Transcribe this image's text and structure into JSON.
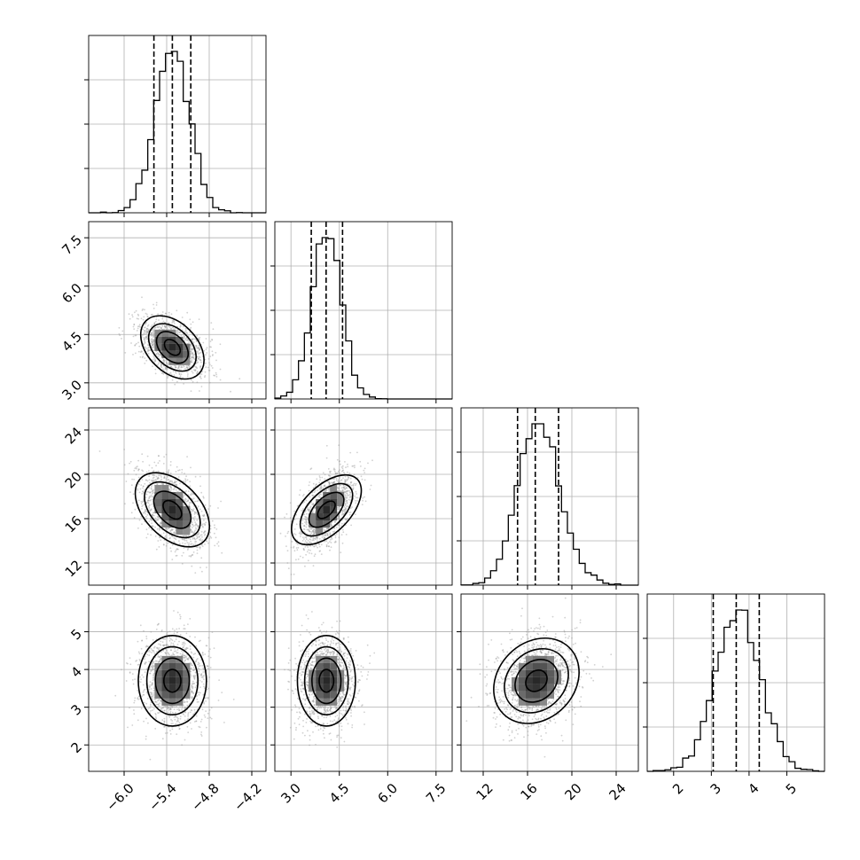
{
  "chart_data": {
    "type": "corner",
    "variables": [
      {
        "range": [
          -6.5,
          -4.0
        ],
        "ticks": [
          -6.0,
          -5.4,
          -4.8,
          -4.2
        ],
        "tick_labels": [
          "−6.0",
          "−5.4",
          "−4.8",
          "−4.2"
        ],
        "quantiles": [
          -5.58,
          -5.32,
          -5.06
        ],
        "mean": -5.32,
        "sd": 0.24
      },
      {
        "range": [
          2.5,
          8.0
        ],
        "ticks": [
          3.0,
          4.5,
          6.0,
          7.5
        ],
        "tick_labels": [
          "3.0",
          "4.5",
          "6.0",
          "7.5"
        ],
        "quantiles": [
          3.63,
          4.09,
          4.6
        ],
        "mean": 4.1,
        "sd": 0.45
      },
      {
        "range": [
          10.0,
          26.0
        ],
        "ticks": [
          12,
          16,
          20,
          24
        ],
        "tick_labels": [
          "12",
          "16",
          "20",
          "24"
        ],
        "quantiles": [
          15.1,
          16.7,
          18.8
        ],
        "mean": 16.8,
        "sd": 1.8
      },
      {
        "range": [
          1.3,
          6.0
        ],
        "ticks": [
          2,
          3,
          4,
          5
        ],
        "tick_labels": [
          "2",
          "3",
          "4",
          "5"
        ],
        "quantiles": [
          3.05,
          3.66,
          4.27
        ],
        "mean": 3.7,
        "sd": 0.6
      }
    ],
    "pair_correlations": {
      "0-1": -0.4,
      "0-2": -0.45,
      "1-2": 0.55,
      "0-3": 0.0,
      "1-3": 0.0,
      "2-3": 0.2
    },
    "contour_levels_sigma": [
      0.5,
      1.0,
      1.5,
      2.0
    ],
    "grid": true,
    "colors": {
      "points": "#9a9a9a",
      "lines": "#000000",
      "grid": "#b0b0b0",
      "density": "#000000"
    }
  }
}
